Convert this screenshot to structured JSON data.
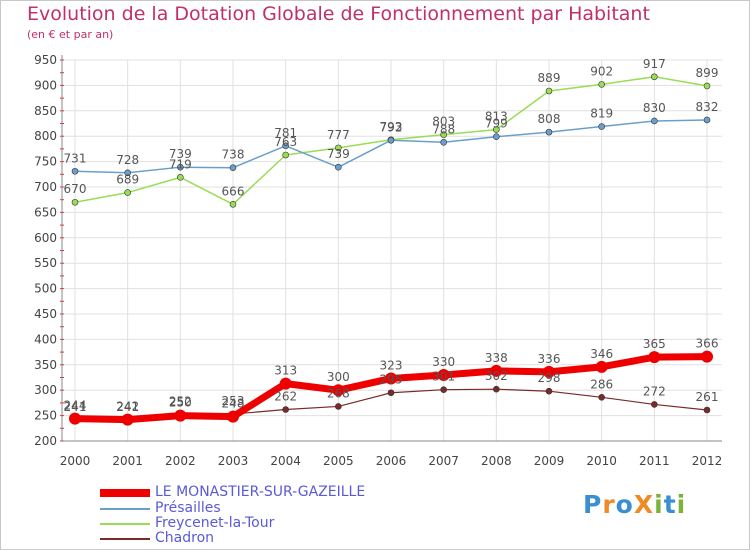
{
  "title": "Evolution de la Dotation Globale de Fonctionnement par Habitant",
  "subtitle": "(en € et par an)",
  "colors": {
    "title": "#c0306a",
    "grid": "#e0e0e0",
    "axis_text": "#444444"
  },
  "logo": {
    "text": "ProXiti",
    "letters": [
      "P",
      "r",
      "o",
      "X",
      "i",
      "t",
      "i"
    ],
    "letter_colors": [
      "#3a8fd0",
      "#f08a24",
      "#3a8fd0",
      "#f08a24",
      "#7ab23a",
      "#3a8fd0",
      "#7ab23a"
    ]
  },
  "chart_data": {
    "type": "line",
    "title": "Evolution de la Dotation Globale de Fonctionnement par Habitant",
    "subtitle": "(en € et par an)",
    "x": [
      "2000",
      "2001",
      "2002",
      "2003",
      "2004",
      "2005",
      "2006",
      "2007",
      "2008",
      "2009",
      "2010",
      "2011",
      "2012"
    ],
    "ylim": [
      200,
      950
    ],
    "yticks": [
      "200",
      "250",
      "300",
      "350",
      "400",
      "450",
      "500",
      "550",
      "600",
      "650",
      "700",
      "750",
      "800",
      "850",
      "900",
      "950"
    ],
    "grid": true,
    "legend_position": "bottom-left",
    "series": [
      {
        "name": "LE MONASTIER-SUR-GAZEILLE",
        "color": "#ee0000",
        "values": [
          244,
          242,
          250,
          248,
          313,
          300,
          323,
          330,
          338,
          336,
          346,
          365,
          366
        ]
      },
      {
        "name": "Présailles",
        "color": "#6a9fcc",
        "values": [
          731,
          728,
          739,
          738,
          781,
          739,
          792,
          788,
          799,
          808,
          819,
          830,
          832
        ]
      },
      {
        "name": "Freycenet-la-Tour",
        "color": "#99dd55",
        "values": [
          670,
          689,
          719,
          666,
          763,
          777,
          793,
          803,
          813,
          889,
          902,
          917,
          899
        ]
      },
      {
        "name": "Chadron",
        "color": "#7a2a2a",
        "values": [
          241,
          241,
          252,
          253,
          262,
          268,
          295,
          301,
          302,
          298,
          286,
          272,
          261
        ]
      }
    ]
  }
}
